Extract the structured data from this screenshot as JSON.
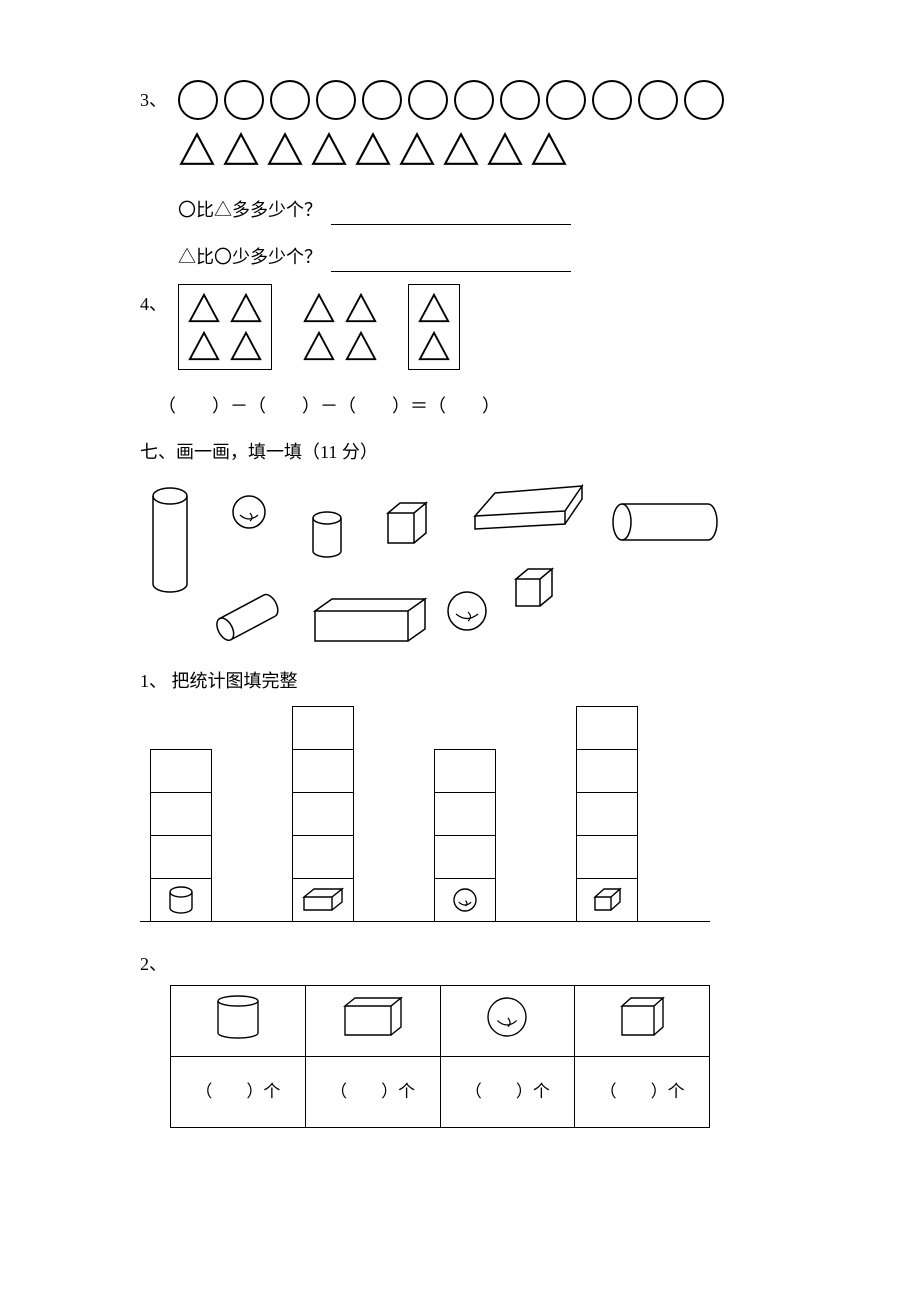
{
  "q3": {
    "number": "3、",
    "circle_count": 12,
    "triangle_count": 9,
    "line1": "〇比△多多少个？",
    "line2": "△比〇少多少个？"
  },
  "q4": {
    "number": "4、",
    "equation": "（　　）－（　　）－（　　）＝（　　）"
  },
  "section7": {
    "title": "七、画一画，填一填（11 分）"
  },
  "sub1": {
    "number": "1、",
    "text": "把统计图填完整",
    "bars": [
      {
        "rows": 3,
        "icon": "cylinder"
      },
      {
        "rows": 4,
        "icon": "cuboid"
      },
      {
        "rows": 3,
        "icon": "ball"
      },
      {
        "rows": 4,
        "icon": "cube"
      }
    ]
  },
  "sub2": {
    "number": "2、",
    "icons": [
      "cylinder",
      "cuboid",
      "ball",
      "cube"
    ],
    "cell_text": "（　　）个"
  },
  "style": {
    "stroke": "#000000",
    "bg": "#ffffff"
  }
}
